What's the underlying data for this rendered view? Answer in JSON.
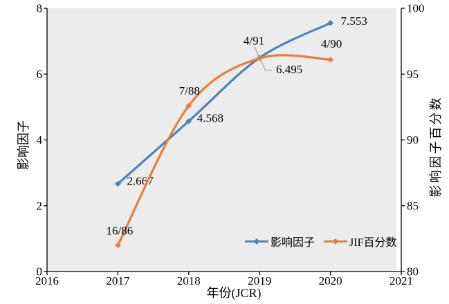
{
  "chart_data": {
    "type": "line",
    "title": "",
    "xlabel": "年份(JCR)",
    "ylabel_left": "影响因子",
    "ylabel_right": "影响因子百分数",
    "x": [
      2017,
      2018,
      2019,
      2020
    ],
    "x_axis": {
      "min": 2016,
      "max": 2021,
      "ticks": [
        "2016",
        "2017",
        "2018",
        "2019",
        "2020",
        "2021"
      ]
    },
    "y_axis_left": {
      "min": 0,
      "max": 8,
      "ticks": [
        "0",
        "2",
        "4",
        "6",
        "8"
      ]
    },
    "y_axis_right": {
      "min": 80,
      "max": 100,
      "ticks": [
        "80",
        "85",
        "90",
        "95",
        "100"
      ]
    },
    "grid": false,
    "plot_background": "#ECECEC",
    "axis_color": "#000000",
    "leader_line_color": "#A6A6A6",
    "legend_position": "bottom-inside",
    "series": [
      {
        "name": "影响因子",
        "axis": "left",
        "color": "#4E81BD",
        "marker": "diamond",
        "smooth": true,
        "values": [
          2.667,
          4.568,
          6.495,
          7.553
        ],
        "point_labels": [
          "2.667",
          "4.568",
          "6.495",
          "7.553"
        ]
      },
      {
        "name": "JIF百分数",
        "axis": "right",
        "color": "#ED7D31",
        "marker": "diamond",
        "smooth": true,
        "values": [
          82.0,
          92.6,
          96.2,
          96.1
        ],
        "point_labels": [
          "16/86",
          "7/88",
          "4/91",
          "4/90"
        ]
      }
    ]
  }
}
